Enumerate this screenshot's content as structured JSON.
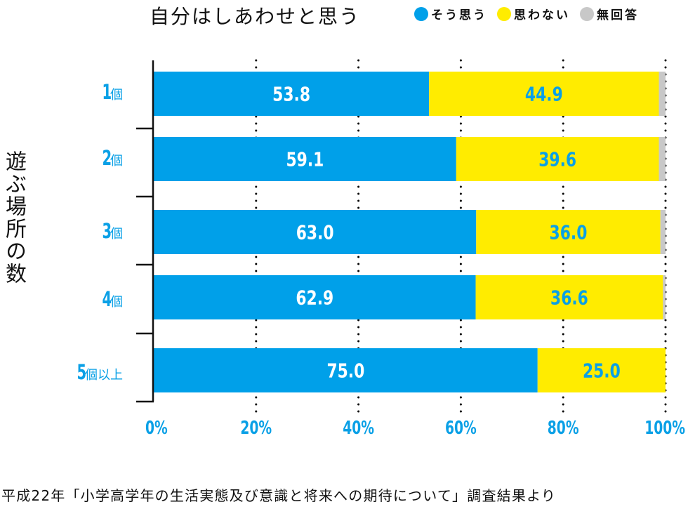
{
  "chart_data": {
    "type": "bar",
    "orientation": "horizontal",
    "stacked": true,
    "title": "自分はしあわせと思う",
    "ylabel": "遊ぶ場所の数",
    "xlabel": "",
    "xlim": [
      0,
      100
    ],
    "x_ticks": [
      "0%",
      "20%",
      "40%",
      "60%",
      "80%",
      "100%"
    ],
    "grid": "dotted vertical",
    "legend_position": "top-right",
    "categories": [
      {
        "num": "1",
        "unit": "個"
      },
      {
        "num": "2",
        "unit": "個"
      },
      {
        "num": "3",
        "unit": "個"
      },
      {
        "num": "4",
        "unit": "個"
      },
      {
        "num": "5",
        "unit": "個以上"
      }
    ],
    "series": [
      {
        "name": "そう思う",
        "color": "#00a0e9",
        "label_color": "#ffffff",
        "values": [
          53.8,
          59.1,
          63.0,
          62.9,
          75.0
        ],
        "labels": [
          "53.8",
          "59.1",
          "63.0",
          "62.9",
          "75.0"
        ]
      },
      {
        "name": "思わない",
        "color": "#ffec00",
        "label_color": "#0aa0e6",
        "values": [
          44.9,
          39.6,
          36.0,
          36.6,
          25.0
        ],
        "labels": [
          "44.9",
          "39.6",
          "36.0",
          "36.6",
          "25.0"
        ]
      },
      {
        "name": "無回答",
        "color": "#c8c8c8",
        "label_color": "",
        "values": [
          1.3,
          1.3,
          1.0,
          0.5,
          0.0
        ],
        "labels": [
          "",
          "",
          "",
          "",
          ""
        ]
      }
    ]
  },
  "source": "平成22年「小学高学年の生活実態及び意識と将来への期待について」調査結果より"
}
